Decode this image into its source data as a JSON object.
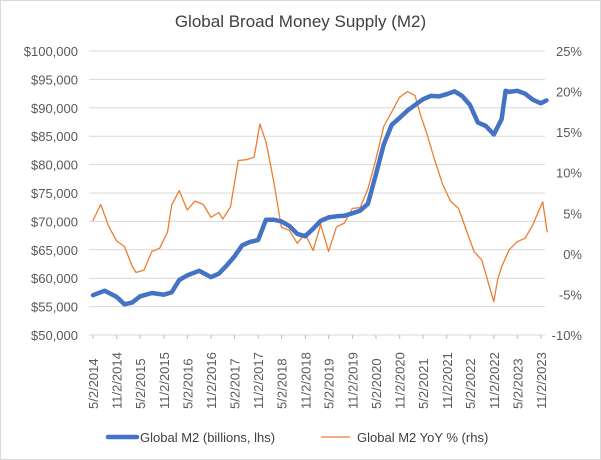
{
  "chart_data": {
    "type": "line",
    "title": "Global Broad Money Supply (M2)",
    "xlabel": "",
    "ylabel": "",
    "x_tick_labels": [
      "5/2/2014",
      "11/2/2014",
      "5/2/2015",
      "11/2/2015",
      "5/2/2016",
      "11/2/2016",
      "5/2/2017",
      "11/2/2017",
      "5/2/2018",
      "11/2/2018",
      "5/2/2019",
      "11/2/2019",
      "5/2/2020",
      "11/2/2020",
      "5/2/2021",
      "11/2/2021",
      "5/2/2022",
      "11/2/2022",
      "5/2/2023",
      "11/2/2023"
    ],
    "y_left": {
      "lim": [
        50000,
        100000
      ],
      "ticks": [
        "$50,000",
        "$55,000",
        "$60,000",
        "$65,000",
        "$70,000",
        "$75,000",
        "$80,000",
        "$85,000",
        "$90,000",
        "$95,000",
        "$100,000"
      ]
    },
    "y_right": {
      "lim": [
        -10,
        25
      ],
      "ticks": [
        "-10%",
        "-5%",
        "0%",
        "5%",
        "10%",
        "15%",
        "20%",
        "25%"
      ]
    },
    "grid": true,
    "legend_position": "bottom",
    "series": [
      {
        "name": "Global M2 (billions, lhs)",
        "axis": "left",
        "color": "#4472c4",
        "x": [
          "2014-05-02",
          "2014-08-01",
          "2014-11-01",
          "2015-01-01",
          "2015-03-01",
          "2015-05-01",
          "2015-08-01",
          "2015-11-01",
          "2016-01-01",
          "2016-03-01",
          "2016-05-01",
          "2016-08-01",
          "2016-11-01",
          "2017-01-01",
          "2017-03-01",
          "2017-05-01",
          "2017-07-01",
          "2017-09-01",
          "2017-11-01",
          "2018-01-01",
          "2018-03-01",
          "2018-05-01",
          "2018-07-01",
          "2018-09-01",
          "2018-11-01",
          "2019-01-01",
          "2019-03-01",
          "2019-05-01",
          "2019-07-01",
          "2019-09-01",
          "2019-11-01",
          "2020-01-01",
          "2020-03-01",
          "2020-05-01",
          "2020-07-01",
          "2020-09-01",
          "2020-11-01",
          "2021-01-01",
          "2021-03-01",
          "2021-05-01",
          "2021-07-01",
          "2021-09-01",
          "2021-11-01",
          "2022-01-01",
          "2022-03-01",
          "2022-05-01",
          "2022-07-01",
          "2022-09-01",
          "2022-11-01",
          "2023-01-01",
          "2023-02-01",
          "2023-03-01",
          "2023-05-01",
          "2023-07-01",
          "2023-09-01",
          "2023-11-01",
          "2023-12-15"
        ],
        "values": [
          57000,
          57800,
          56700,
          55400,
          55700,
          56800,
          57400,
          57100,
          57500,
          59700,
          60500,
          61300,
          60200,
          60800,
          62200,
          63800,
          65800,
          66400,
          66700,
          70300,
          70300,
          70000,
          69200,
          67800,
          67400,
          68700,
          70100,
          70700,
          70900,
          71000,
          71400,
          71900,
          73100,
          78200,
          83500,
          87000,
          88200,
          89500,
          90500,
          91500,
          92100,
          92000,
          92400,
          92900,
          92100,
          90500,
          87400,
          86800,
          85300,
          88000,
          93000,
          92800,
          93000,
          92500,
          91400,
          90800,
          91300
        ]
      },
      {
        "name": "Global M2 YoY % (rhs)",
        "axis": "right",
        "color": "#ed7d31",
        "x": [
          "2014-05-02",
          "2014-07-01",
          "2014-09-01",
          "2014-11-01",
          "2015-01-01",
          "2015-03-01",
          "2015-04-01",
          "2015-06-01",
          "2015-08-01",
          "2015-10-01",
          "2015-12-01",
          "2016-01-01",
          "2016-03-01",
          "2016-05-01",
          "2016-07-01",
          "2016-09-01",
          "2016-11-01",
          "2017-01-01",
          "2017-02-01",
          "2017-04-01",
          "2017-06-01",
          "2017-08-01",
          "2017-10-01",
          "2017-11-15",
          "2018-01-01",
          "2018-03-01",
          "2018-05-01",
          "2018-07-01",
          "2018-09-01",
          "2018-11-01",
          "2019-01-01",
          "2019-03-01",
          "2019-05-01",
          "2019-07-01",
          "2019-09-01",
          "2019-11-01",
          "2020-01-01",
          "2020-03-01",
          "2020-05-01",
          "2020-07-01",
          "2020-09-01",
          "2020-11-01",
          "2021-01-01",
          "2021-03-01",
          "2021-04-15",
          "2021-06-01",
          "2021-08-01",
          "2021-10-01",
          "2021-12-01",
          "2022-02-01",
          "2022-04-01",
          "2022-06-01",
          "2022-08-01",
          "2022-10-01",
          "2022-11-01",
          "2022-12-01",
          "2023-01-01",
          "2023-03-01",
          "2023-05-01",
          "2023-07-01",
          "2023-09-01",
          "2023-10-15",
          "2023-11-15",
          "2023-12-20"
        ],
        "values": [
          4.1,
          6.1,
          3.4,
          1.6,
          0.9,
          -1.5,
          -2.3,
          -2.0,
          0.3,
          0.7,
          2.7,
          6.0,
          7.8,
          5.4,
          6.5,
          6.1,
          4.5,
          5.1,
          4.3,
          5.8,
          11.5,
          11.6,
          11.9,
          16.0,
          13.8,
          9.0,
          3.3,
          2.9,
          1.3,
          2.5,
          0.4,
          3.6,
          0.3,
          3.3,
          3.8,
          5.6,
          5.7,
          8.0,
          11.6,
          15.7,
          17.5,
          19.3,
          20.0,
          19.5,
          17.0,
          14.8,
          11.5,
          8.6,
          6.5,
          5.6,
          3.0,
          0.3,
          -0.8,
          -4.2,
          -5.9,
          -3.2,
          -1.6,
          0.5,
          1.5,
          1.9,
          3.6,
          5.3,
          6.4,
          2.7
        ]
      }
    ]
  }
}
